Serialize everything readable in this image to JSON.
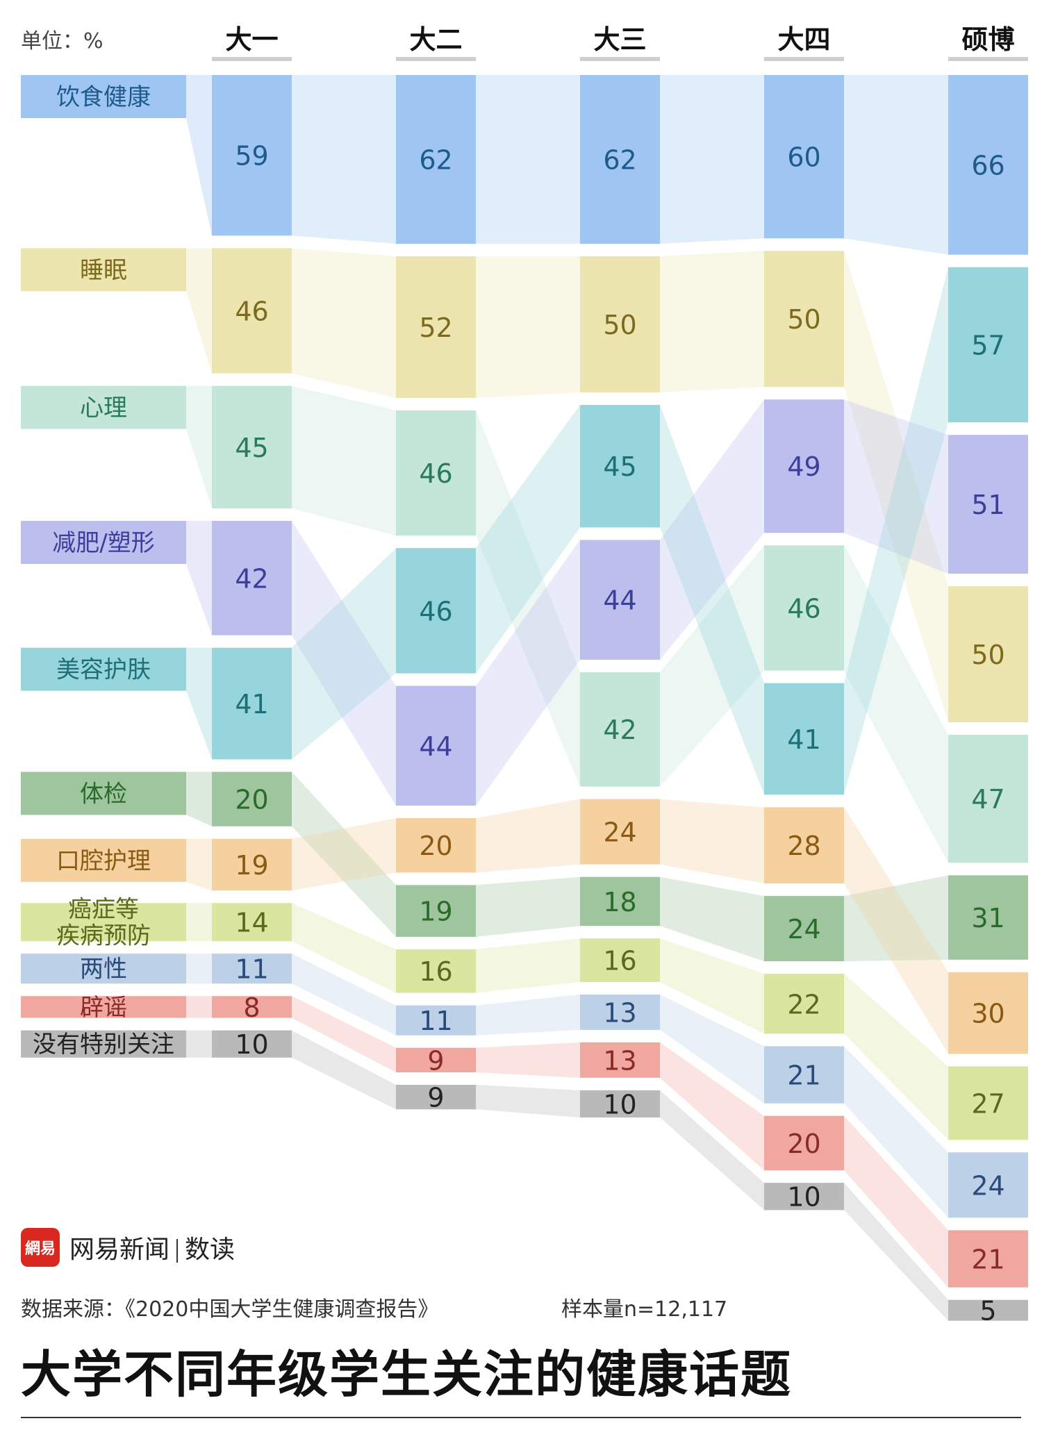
{
  "unit_label": "单位：%",
  "footer": {
    "logo_text": "網易",
    "brand": "网易新闻",
    "brand_section": "数读",
    "source": "数据来源：《2020中国大学生健康调查报告》",
    "sample": "样本量n=12,117"
  },
  "title": "大学不同年级学生关注的健康话题",
  "chart_data": {
    "type": "bump",
    "categories": [
      "大一",
      "大二",
      "大三",
      "大四",
      "硕博"
    ],
    "series": [
      {
        "name": "饮食健康",
        "color": "#9fc6f2",
        "label_color": "#1e5a8c",
        "values": [
          59,
          62,
          62,
          60,
          66
        ]
      },
      {
        "name": "睡眠",
        "color": "#ece5b0",
        "label_color": "#7d6a1c",
        "values": [
          46,
          52,
          50,
          50,
          50
        ]
      },
      {
        "name": "心理",
        "color": "#c3e6d9",
        "label_color": "#2a7a5c",
        "values": [
          45,
          46,
          42,
          46,
          47
        ]
      },
      {
        "name": "减肥/塑形",
        "color": "#bcbfee",
        "label_color": "#3b3f9a",
        "values": [
          42,
          44,
          44,
          49,
          51
        ]
      },
      {
        "name": "美容护肤",
        "color": "#96d5db",
        "label_color": "#1e6e78",
        "values": [
          41,
          46,
          45,
          41,
          57
        ]
      },
      {
        "name": "体检",
        "color": "#9fc59f",
        "label_color": "#2a6a2a",
        "values": [
          20,
          19,
          18,
          24,
          31
        ]
      },
      {
        "name": "口腔护理",
        "color": "#f4d19e",
        "label_color": "#8a5a14",
        "values": [
          19,
          20,
          24,
          28,
          30
        ]
      },
      {
        "name": "癌症等疾病预防",
        "color": "#dae6a0",
        "label_color": "#5a6a1c",
        "values": [
          14,
          16,
          16,
          22,
          27
        ]
      },
      {
        "name": "两性",
        "color": "#bcd0e8",
        "label_color": "#2a4a7a",
        "values": [
          11,
          11,
          13,
          21,
          24
        ]
      },
      {
        "name": "辟谣",
        "color": "#efa7a0",
        "label_color": "#8a2a24",
        "values": [
          8,
          9,
          13,
          20,
          21
        ]
      },
      {
        "name": "没有特别关注",
        "color": "#b9b9b9",
        "label_color": "#222222",
        "values": [
          10,
          9,
          10,
          10,
          5
        ]
      }
    ],
    "row_labels": [
      "饮食健康",
      "睡眠",
      "心理",
      "减肥/塑形",
      "美容护肤",
      "体检",
      "口腔护理",
      "癌症等\n疾病预防",
      "两性",
      "辟谣",
      "没有特别关注"
    ],
    "stacking": [
      [
        0,
        1,
        2,
        3,
        4,
        5,
        6,
        7,
        8,
        9,
        10
      ],
      [
        0,
        1,
        2,
        4,
        3,
        6,
        5,
        7,
        8,
        9,
        10
      ],
      [
        0,
        1,
        4,
        3,
        2,
        6,
        5,
        7,
        8,
        9,
        10
      ],
      [
        0,
        1,
        3,
        2,
        4,
        6,
        5,
        7,
        8,
        9,
        10
      ],
      [
        0,
        4,
        3,
        1,
        2,
        5,
        6,
        7,
        8,
        9,
        10
      ]
    ]
  }
}
